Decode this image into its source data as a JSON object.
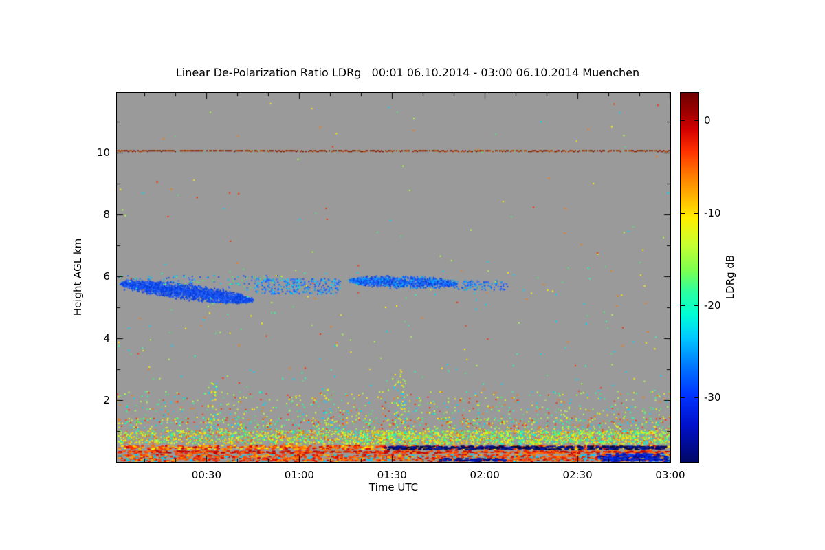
{
  "page": {
    "background": "#ffffff"
  },
  "chart_data": {
    "type": "heatmap",
    "title": "Linear De-Polarization Ratio LDRg   00:01 06.10.2014 - 03:00 06.10.2014 Muenchen",
    "xlabel": "Time UTC",
    "ylabel": "Height AGL km",
    "station": "Muenchen",
    "time_start": "00:01 06.10.2014",
    "time_end": "03:00 06.10.2014",
    "x_start_hour": 0.0167,
    "x_end_hour": 3.0,
    "x_minor_step_hour": 0.166667,
    "x_ticks": [
      {
        "hour": 0.5,
        "label": "00:30"
      },
      {
        "hour": 1.0,
        "label": "01:00"
      },
      {
        "hour": 1.5,
        "label": "01:30"
      },
      {
        "hour": 2.0,
        "label": "02:00"
      },
      {
        "hour": 2.5,
        "label": "02:30"
      },
      {
        "hour": 3.0,
        "label": "03:00"
      }
    ],
    "ylim": [
      0,
      11.93
    ],
    "y_ticks": [
      {
        "km": 2,
        "label": "2"
      },
      {
        "km": 4,
        "label": "4"
      },
      {
        "km": 6,
        "label": "6"
      },
      {
        "km": 8,
        "label": "8"
      },
      {
        "km": 10,
        "label": "10"
      }
    ],
    "plot_bg": "#9a9a9a",
    "colorbar": {
      "label": "LDRg dB",
      "vmin": -37,
      "vmax": 3,
      "ticks": [
        {
          "value": 0,
          "label": "0"
        },
        {
          "value": -10,
          "label": "-10"
        },
        {
          "value": -20,
          "label": "-20"
        },
        {
          "value": -30,
          "label": "-30"
        }
      ],
      "gradient": [
        {
          "pos": 0,
          "color": "#6e0000"
        },
        {
          "pos": 5,
          "color": "#9b0000"
        },
        {
          "pos": 10,
          "color": "#d40000"
        },
        {
          "pos": 16,
          "color": "#ff3300"
        },
        {
          "pos": 22,
          "color": "#ff7700"
        },
        {
          "pos": 28,
          "color": "#ffb300"
        },
        {
          "pos": 34,
          "color": "#ffee00"
        },
        {
          "pos": 41,
          "color": "#c8ff30"
        },
        {
          "pos": 48,
          "color": "#7dff4f"
        },
        {
          "pos": 54,
          "color": "#2bffa0"
        },
        {
          "pos": 60,
          "color": "#00ffd5"
        },
        {
          "pos": 66,
          "color": "#00ccff"
        },
        {
          "pos": 74,
          "color": "#0077ff"
        },
        {
          "pos": 82,
          "color": "#0033ff"
        },
        {
          "pos": 90,
          "color": "#0011cc"
        },
        {
          "pos": 100,
          "color": "#000766"
        }
      ]
    },
    "features": [
      {
        "kind": "hline",
        "desc": "thin dark-red instrument line near 10 km",
        "t0": 0.0167,
        "t1": 3.0,
        "h": 10.08,
        "density": 0.82,
        "colors": [
          "#8b1500",
          "#a03000",
          "#7a2000",
          "#b84400"
        ],
        "seed": 101
      },
      {
        "kind": "speckles",
        "desc": "cyan-blue halo around first cloud layer",
        "t0": 0.02,
        "t1": 0.9,
        "h0": 5.5,
        "h1": 6.05,
        "count": 170,
        "colors": [
          "#00bfff",
          "#2b6cff",
          "#1a52f0",
          "#58e078"
        ],
        "seed": 102
      },
      {
        "kind": "cloud",
        "desc": "descending ice cloud layer 00:02-00:45, LDR ~ -28 dB",
        "t0": 0.04,
        "t1": 0.74,
        "h0": 5.78,
        "h1": 5.25,
        "thick": 0.4,
        "count": 2300,
        "colors": [
          "#1a52f0",
          "#0a3cd8",
          "#2b6cff",
          "#1a52f0",
          "#0040e0"
        ],
        "seed": 103
      },
      {
        "kind": "speckles",
        "desc": "broken cloud remnants around 01:00",
        "t0": 0.76,
        "t1": 1.22,
        "h0": 5.45,
        "h1": 5.95,
        "count": 270,
        "colors": [
          "#2b6cff",
          "#00a8ff",
          "#1a52f0",
          "#00d5ff"
        ],
        "seed": 104
      },
      {
        "kind": "cloud",
        "desc": "second cloud layer 01:16-01:50 near 5.8 km, LDR ~ -27 dB",
        "t0": 1.27,
        "t1": 1.84,
        "h0": 5.88,
        "h1": 5.78,
        "thick": 0.32,
        "count": 1250,
        "colors": [
          "#1a52f0",
          "#2b6cff",
          "#0a3cd8",
          "#00a8ff"
        ],
        "seed": 105
      },
      {
        "kind": "speckles",
        "desc": "trailing cloud fragments to 02:07",
        "t0": 1.82,
        "t1": 2.12,
        "h0": 5.58,
        "h1": 5.88,
        "count": 110,
        "colors": [
          "#2b6cff",
          "#00a8ff",
          "#1a52f0"
        ],
        "seed": 106
      },
      {
        "kind": "speckles",
        "desc": "very sparse noise above 6.5 km",
        "t0": 0.02,
        "t1": 3.0,
        "h0": 6.5,
        "h1": 11.6,
        "count": 70,
        "colors": [
          "#ffee00",
          "#aaff44",
          "#00d5ff",
          "#ff7700",
          "#ff3000",
          "#58e078"
        ],
        "seed": 107
      },
      {
        "kind": "speckles",
        "desc": "sparse noise 2.3-6.5 km",
        "t0": 0.02,
        "t1": 3.0,
        "h0": 2.3,
        "h1": 6.5,
        "count": 210,
        "colors": [
          "#ffee00",
          "#aaff44",
          "#00d5ff",
          "#ff7700",
          "#ff3000",
          "#58e078",
          "#2bffa0"
        ],
        "seed": 108
      },
      {
        "kind": "speckles",
        "desc": "noise 1.45-2.3 km",
        "t0": 0.0167,
        "t1": 3.0,
        "h0": 1.45,
        "h1": 2.3,
        "count": 480,
        "colors": [
          "#ffee00",
          "#aaff44",
          "#58e078",
          "#00d5ff",
          "#ff7700",
          "#ff3000",
          "#2bffa0",
          "#c8ff30"
        ],
        "seed": 109
      },
      {
        "kind": "speckles",
        "desc": "denser noise 1.0-1.45 km",
        "t0": 0.0167,
        "t1": 3.0,
        "h0": 1.0,
        "h1": 1.45,
        "count": 800,
        "colors": [
          "#ffee00",
          "#aaff44",
          "#58e078",
          "#00d5ff",
          "#ff7700",
          "#ff3000",
          "#2bffa0",
          "#c8ff30"
        ],
        "seed": 110
      },
      {
        "kind": "speckles",
        "desc": "vertical noise streak near 00:31",
        "t0": 0.5,
        "t1": 0.56,
        "h0": 1.0,
        "h1": 2.6,
        "count": 40,
        "colors": [
          "#aaff44",
          "#ffee00",
          "#00d5ff"
        ],
        "seed": 111
      },
      {
        "kind": "speckles",
        "desc": "vertical noise streak near 01:31",
        "t0": 1.5,
        "t1": 1.57,
        "h0": 1.0,
        "h1": 3.0,
        "count": 55,
        "colors": [
          "#ffee00",
          "#aaff44",
          "#00d5ff"
        ],
        "seed": 112
      },
      {
        "kind": "speckles",
        "desc": "vertical noise streak near 01:08",
        "t0": 1.12,
        "t1": 1.18,
        "h0": 1.0,
        "h1": 2.4,
        "count": 30,
        "colors": [
          "#ffee00",
          "#58e078",
          "#00d5ff"
        ],
        "seed": 113
      },
      {
        "kind": "band",
        "desc": "mixed aerosol speckle band 0.55-1.0 km",
        "t0": 0.0167,
        "t1": 3.0,
        "h0": 0.55,
        "h1": 1.02,
        "density": 0.5,
        "colors": [
          "#ffee00",
          "#c8ff30",
          "#7dff4f",
          "#ffb300",
          "#ff5500",
          "#00ffd5",
          "#58e078",
          "#ffee00"
        ],
        "seed": 114
      },
      {
        "kind": "band",
        "desc": "extra aerosol density after 01:18",
        "t0": 1.3,
        "t1": 3.0,
        "h0": 0.55,
        "h1": 1.02,
        "density": 0.3,
        "colors": [
          "#ffee00",
          "#c8ff30",
          "#7dff4f",
          "#00ffd5",
          "#ffb300"
        ],
        "seed": 115
      },
      {
        "kind": "band",
        "desc": "red-orange near-surface stripe 0.38-0.55 km",
        "t0": 0.0167,
        "t1": 3.0,
        "h0": 0.38,
        "h1": 0.55,
        "density": 0.9,
        "dw": 4,
        "colors": [
          "#ff3300",
          "#ff7700",
          "#ffb300",
          "#d40000",
          "#ffee00",
          "#ff3300"
        ],
        "seed": 116
      },
      {
        "kind": "band",
        "desc": "dark navy layer after 01:28",
        "t0": 1.45,
        "t1": 3.0,
        "h0": 0.38,
        "h1": 0.53,
        "density": 1.2,
        "dw": 5,
        "colors": [
          "#000d80",
          "#001cb0",
          "#000a5e",
          "#0a0a2a"
        ],
        "seed": 117
      },
      {
        "kind": "band",
        "desc": "solid red stripe 0.26-0.38 km",
        "t0": 0.0167,
        "t1": 3.0,
        "h0": 0.26,
        "h1": 0.38,
        "density": 1.2,
        "dw": 5,
        "colors": [
          "#e02000",
          "#ff4400",
          "#c00000",
          "#ff7700"
        ],
        "seed": 118
      },
      {
        "kind": "band",
        "desc": "lowest gates mixed red-orange with cyan",
        "t0": 0.0167,
        "t1": 3.0,
        "h0": 0.0,
        "h1": 0.26,
        "density": 1.0,
        "dw": 4,
        "colors": [
          "#ff4400",
          "#ff7700",
          "#ffb300",
          "#d40000",
          "#00ccff",
          "#ff4400",
          "#e02000"
        ],
        "seed": 119
      },
      {
        "kind": "band",
        "desc": "navy patch at surface 01:45-02:07",
        "t0": 1.75,
        "t1": 2.12,
        "h0": 0.0,
        "h1": 0.14,
        "density": 1.1,
        "dw": 5,
        "colors": [
          "#001099",
          "#0022cc",
          "#000766"
        ],
        "seed": 120
      },
      {
        "kind": "band",
        "desc": "navy patch at surface after 02:36",
        "t0": 2.6,
        "t1": 3.0,
        "h0": 0.0,
        "h1": 0.3,
        "density": 1.2,
        "dw": 5,
        "colors": [
          "#0022cc",
          "#001099",
          "#0033ff"
        ],
        "seed": 121
      }
    ]
  }
}
